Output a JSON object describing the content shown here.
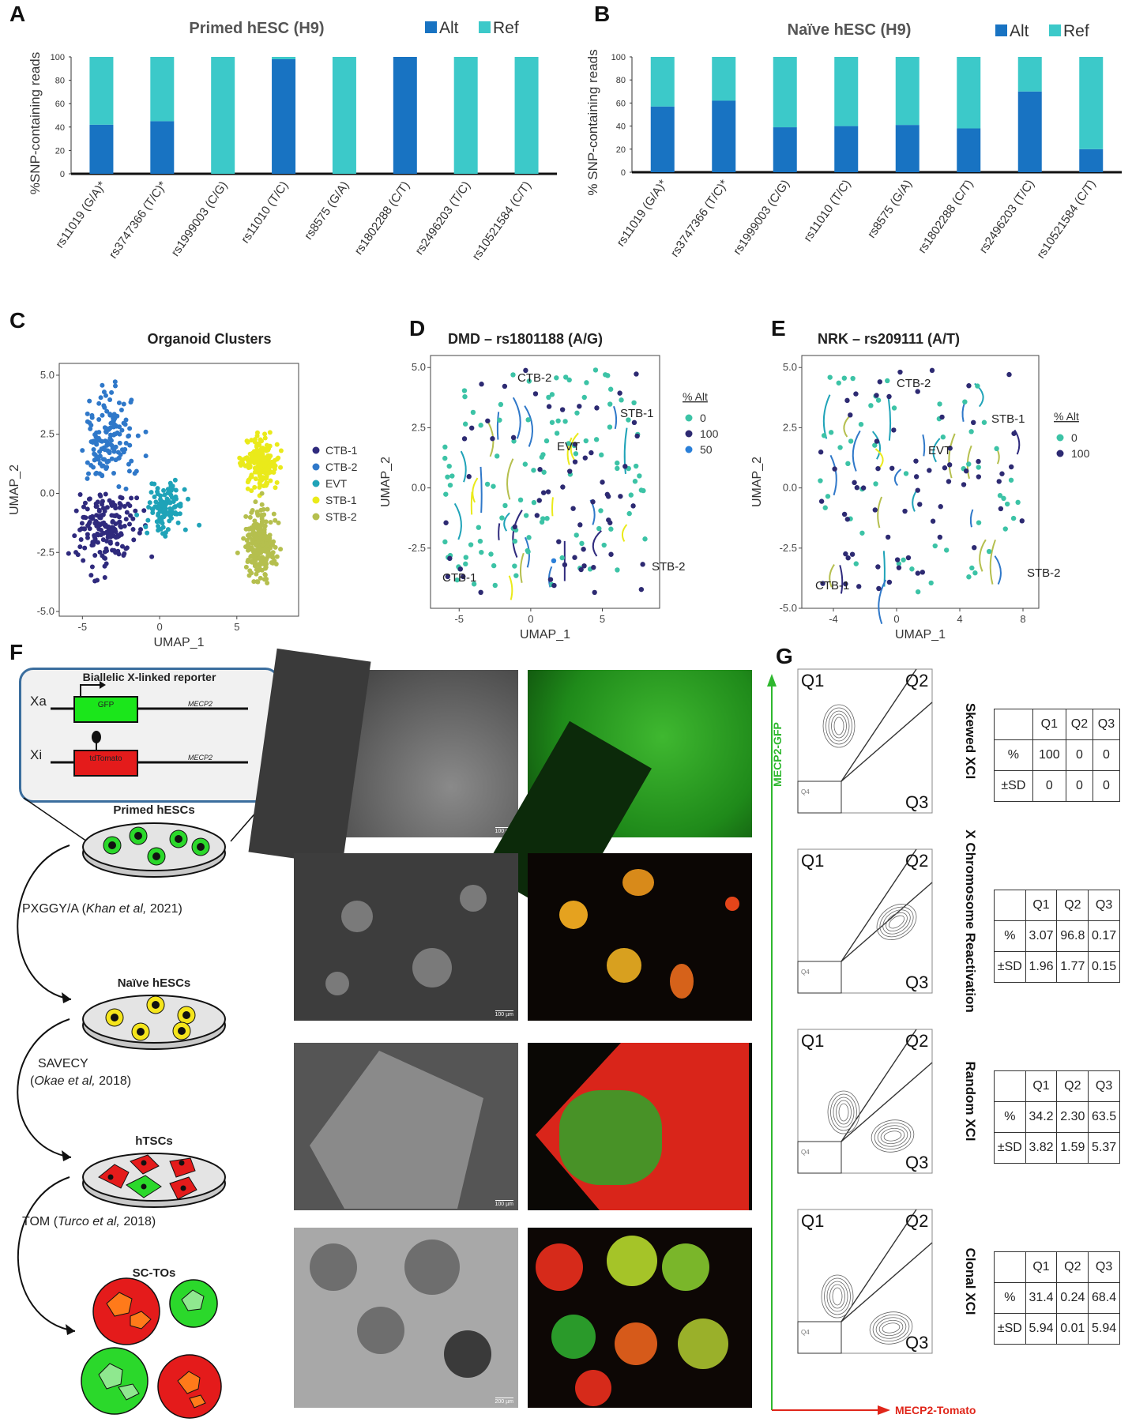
{
  "panel_labels": {
    "A": "A",
    "B": "B",
    "C": "C",
    "D": "D",
    "E": "E",
    "F": "F",
    "G": "G"
  },
  "colors": {
    "alt": "#1873c2",
    "ref": "#3cc9c9",
    "ctb1": "#2f2a7d",
    "ctb2": "#2f78c9",
    "evt": "#1fa3b8",
    "stb1": "#eaea1a",
    "stb2": "#b5bf4e",
    "pct0": "#3cc3a6",
    "pct100": "#2d2a72",
    "pct50": "#2a7fd8"
  },
  "chart_data": [
    {
      "id": "A",
      "type": "bar",
      "title": "Primed hESC (H9)",
      "categories": [
        "rs11019 (G/A)*",
        "rs3747366 (T/C)*",
        "rs1999003 (C/G)",
        "rs11010 (T/C)",
        "rs8575 (G/A)",
        "rs1802288 (C/T)",
        "rs2496203 (T/C)",
        "rs10521584 (C/T)"
      ],
      "series": [
        {
          "name": "Alt",
          "values": [
            42,
            45,
            0,
            98,
            0,
            100,
            0,
            0
          ]
        },
        {
          "name": "Ref",
          "values": [
            58,
            55,
            100,
            2,
            100,
            0,
            100,
            100
          ]
        }
      ],
      "stacked": true,
      "ylabel": "%SNP-containing reads",
      "ylim": [
        0,
        100
      ],
      "yticks": [
        "0",
        "20",
        "40",
        "60",
        "80",
        "100"
      ],
      "legend": "top-right"
    },
    {
      "id": "B",
      "type": "bar",
      "title": "Naïve hESC (H9)",
      "categories": [
        "rs11019 (G/A)*",
        "rs3747366 (T/C)*",
        "rs1999003 (C/G)",
        "rs11010 (T/C)",
        "rs8575 (G/A)",
        "rs1802288 (C/T)",
        "rs2496203 (T/C)",
        "rs10521584 (C/T)"
      ],
      "series": [
        {
          "name": "Alt",
          "values": [
            57,
            62,
            39,
            40,
            41,
            38,
            70,
            20
          ]
        },
        {
          "name": "Ref",
          "values": [
            43,
            38,
            61,
            60,
            59,
            62,
            30,
            80
          ]
        }
      ],
      "stacked": true,
      "ylabel": "% SNP-containing reads",
      "ylim": [
        0,
        100
      ],
      "yticks": [
        "0",
        "20",
        "40",
        "60",
        "80",
        "100"
      ],
      "legend": "top-right"
    },
    {
      "id": "C",
      "type": "scatter",
      "title": "Organoid Clusters",
      "xlabel": "UMAP_1",
      "ylabel": "UMAP_2",
      "xlim": [
        -6.5,
        9
      ],
      "ylim": [
        -5.2,
        5.5
      ],
      "xticks": [
        "-5",
        "0",
        "5"
      ],
      "yticks": [
        "5.0",
        "2.5",
        "0.0",
        "-2.5",
        "-5.0"
      ],
      "series": [
        {
          "name": "CTB-1",
          "center": [
            -3.5,
            -1.5
          ],
          "spread": [
            1.6,
            1.3
          ],
          "n": 180
        },
        {
          "name": "CTB-2",
          "center": [
            -3.3,
            2.3
          ],
          "spread": [
            1.3,
            1.6
          ],
          "n": 150
        },
        {
          "name": "EVT",
          "center": [
            0.5,
            -0.6
          ],
          "spread": [
            1.1,
            0.9
          ],
          "n": 110
        },
        {
          "name": "STB-1",
          "center": [
            6.5,
            1.3
          ],
          "spread": [
            0.9,
            0.9
          ],
          "n": 190
        },
        {
          "name": "STB-2",
          "center": [
            6.6,
            -2.2
          ],
          "spread": [
            0.9,
            1.2
          ],
          "n": 230
        }
      ],
      "legend": "right"
    },
    {
      "id": "D",
      "type": "scatter",
      "title": "DMD – rs1801188 (A/G)",
      "xlabel": "UMAP_1",
      "ylabel": "UMAP_2",
      "xlim": [
        -7,
        9
      ],
      "ylim": [
        -5,
        5.5
      ],
      "xticks": [
        "-5",
        "0",
        "5"
      ],
      "yticks": [
        "5.0",
        "2.5",
        "0.0",
        "-2.5"
      ],
      "legend_title": "% Alt",
      "series": [
        {
          "name": "0",
          "n": 110
        },
        {
          "name": "100",
          "n": 60
        },
        {
          "name": "50",
          "n": 1
        }
      ],
      "annotations": [
        "CTB-2",
        "STB-1",
        "EVT",
        "CTB-1",
        "STB-2"
      ]
    },
    {
      "id": "E",
      "type": "scatter",
      "title": "NRK – rs209111 (A/T)",
      "xlabel": "UMAP_1",
      "ylabel": "UMAP_2",
      "xlim": [
        -6,
        9
      ],
      "ylim": [
        -5,
        5.5
      ],
      "xticks": [
        "-4",
        "0",
        "4",
        "8"
      ],
      "yticks": [
        "5.0",
        "2.5",
        "0.0",
        "-2.5",
        "-5.0"
      ],
      "legend_title": "% Alt",
      "series": [
        {
          "name": "0",
          "n": 55
        },
        {
          "name": "100",
          "n": 65
        }
      ],
      "annotations": [
        "CTB-2",
        "STB-1",
        "EVT",
        "CTB-1",
        "STB-2"
      ]
    }
  ],
  "panel_f": {
    "reporter_title": "Biallelic X-linked reporter",
    "xa": "Xa",
    "xi": "Xi",
    "gfp": "GFP",
    "tdtomato": "tdTomato",
    "mecp2_1": "MECP2",
    "mecp2_2": "MECP2",
    "primed": "Primed hESCs",
    "naive": "Naïve hESCs",
    "htsc": "hTSCs",
    "sctos": "SC-TOs",
    "step1_a": "PXGGY/A (",
    "step1_ref": "Khan et al,",
    "step1_b": " 2021)",
    "step2_a": "SAVECY",
    "step2_b": "(",
    "step2_ref": "Okae et al,",
    "step2_c": " 2018)",
    "step3_a": "TOM (",
    "step3_ref": "Turco et al,",
    "step3_b": " 2018)",
    "scalebars": [
      "100 µm",
      "100 µm",
      "100 µm",
      "200 µm"
    ]
  },
  "panel_g": {
    "y_axis": "MECP2-GFP",
    "x_axis": "MECP2-Tomato",
    "quadrants": {
      "q1": "Q1",
      "q2": "Q2",
      "q3": "Q3",
      "q4": "Q4"
    },
    "rows": [
      {
        "label": "Skewed XCI",
        "header": [
          "",
          "Q1",
          "Q2",
          "Q3"
        ],
        "pct_label": "%",
        "pct": [
          "100",
          "0",
          "0"
        ],
        "sd_label": "±SD",
        "sd": [
          "0",
          "0",
          "0"
        ]
      },
      {
        "label": "X Chromosome Reactivation",
        "header": [
          "",
          "Q1",
          "Q2",
          "Q3"
        ],
        "pct_label": "%",
        "pct": [
          "3.07",
          "96.8",
          "0.17"
        ],
        "sd_label": "±SD",
        "sd": [
          "1.96",
          "1.77",
          "0.15"
        ]
      },
      {
        "label": "Random XCI",
        "header": [
          "",
          "Q1",
          "Q2",
          "Q3"
        ],
        "pct_label": "%",
        "pct": [
          "34.2",
          "2.30",
          "63.5"
        ],
        "sd_label": "±SD",
        "sd": [
          "3.82",
          "1.59",
          "5.37"
        ]
      },
      {
        "label": "Clonal XCI",
        "header": [
          "",
          "Q1",
          "Q2",
          "Q3"
        ],
        "pct_label": "%",
        "pct": [
          "31.4",
          "0.24",
          "68.4"
        ],
        "sd_label": "±SD",
        "sd": [
          "5.94",
          "0.01",
          "5.94"
        ]
      }
    ]
  }
}
